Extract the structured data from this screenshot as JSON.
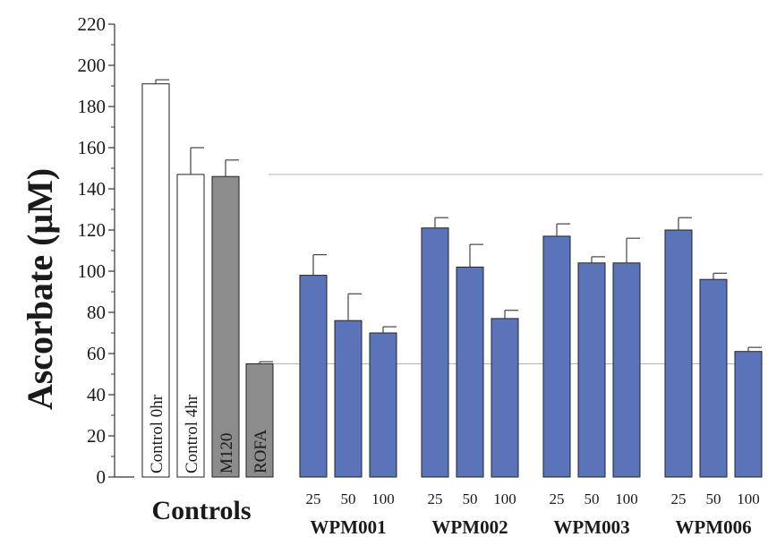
{
  "chart_data": {
    "type": "bar",
    "ylabel": "Ascorbate (μM)",
    "ylim": [
      0,
      220
    ],
    "yticks": [
      0,
      20,
      40,
      60,
      80,
      100,
      120,
      140,
      160,
      180,
      200,
      220
    ],
    "reference_lines": [
      147,
      55
    ],
    "controls_label": "Controls",
    "controls": [
      {
        "label": "Control 0hr",
        "value": 191,
        "error": 2,
        "color": "#ffffff"
      },
      {
        "label": "Control 4hr",
        "value": 147,
        "error": 13,
        "color": "#ffffff"
      },
      {
        "label": "M120",
        "value": 146,
        "error": 8,
        "color": "#8c8c8c"
      },
      {
        "label": "ROFA",
        "value": 55,
        "error": 1,
        "color": "#8c8c8c"
      }
    ],
    "series_color": "#5b73b9",
    "groups": [
      {
        "name": "WPM001",
        "doses": [
          "25",
          "50",
          "100"
        ],
        "values": [
          98,
          76,
          70
        ],
        "errors": [
          10,
          13,
          3
        ]
      },
      {
        "name": "WPM002",
        "doses": [
          "25",
          "50",
          "100"
        ],
        "values": [
          121,
          102,
          77
        ],
        "errors": [
          5,
          11,
          4
        ]
      },
      {
        "name": "WPM003",
        "doses": [
          "25",
          "50",
          "100"
        ],
        "values": [
          117,
          104,
          104
        ],
        "errors": [
          6,
          3,
          12
        ]
      },
      {
        "name": "WPM006",
        "doses": [
          "25",
          "50",
          "100"
        ],
        "values": [
          120,
          96,
          61
        ],
        "errors": [
          6,
          3,
          2
        ]
      }
    ]
  }
}
